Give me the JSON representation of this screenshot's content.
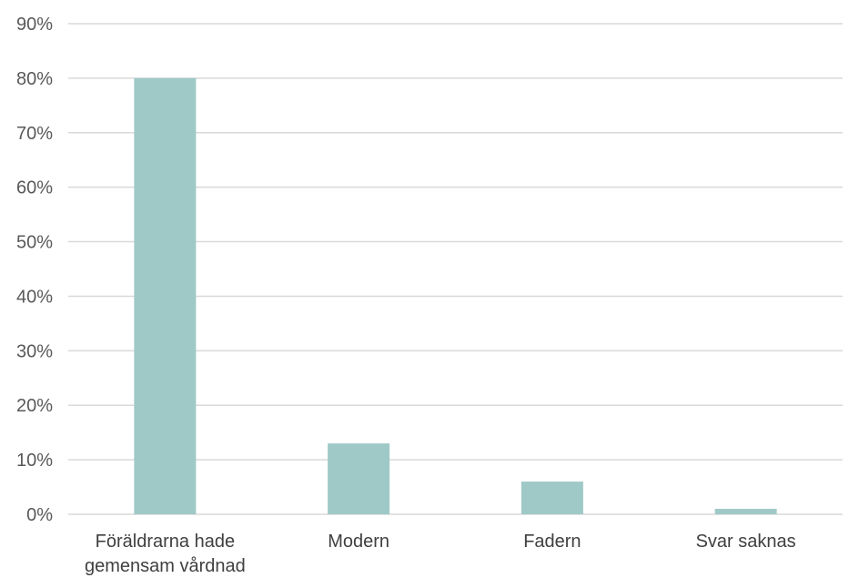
{
  "chart_data": {
    "type": "bar",
    "categories": [
      [
        "Föräldrarna hade",
        "gemensam vårdnad"
      ],
      [
        "Modern"
      ],
      [
        "Fadern"
      ],
      [
        "Svar saknas"
      ]
    ],
    "values": [
      80,
      13,
      6,
      1
    ],
    "ylim": [
      0,
      90
    ],
    "yticks": [
      "0%",
      "10%",
      "20%",
      "30%",
      "40%",
      "50%",
      "60%",
      "70%",
      "80%",
      "90%"
    ],
    "grid": true,
    "bar_color": "#9fc9c7",
    "grid_color": "#d9d9d9"
  }
}
